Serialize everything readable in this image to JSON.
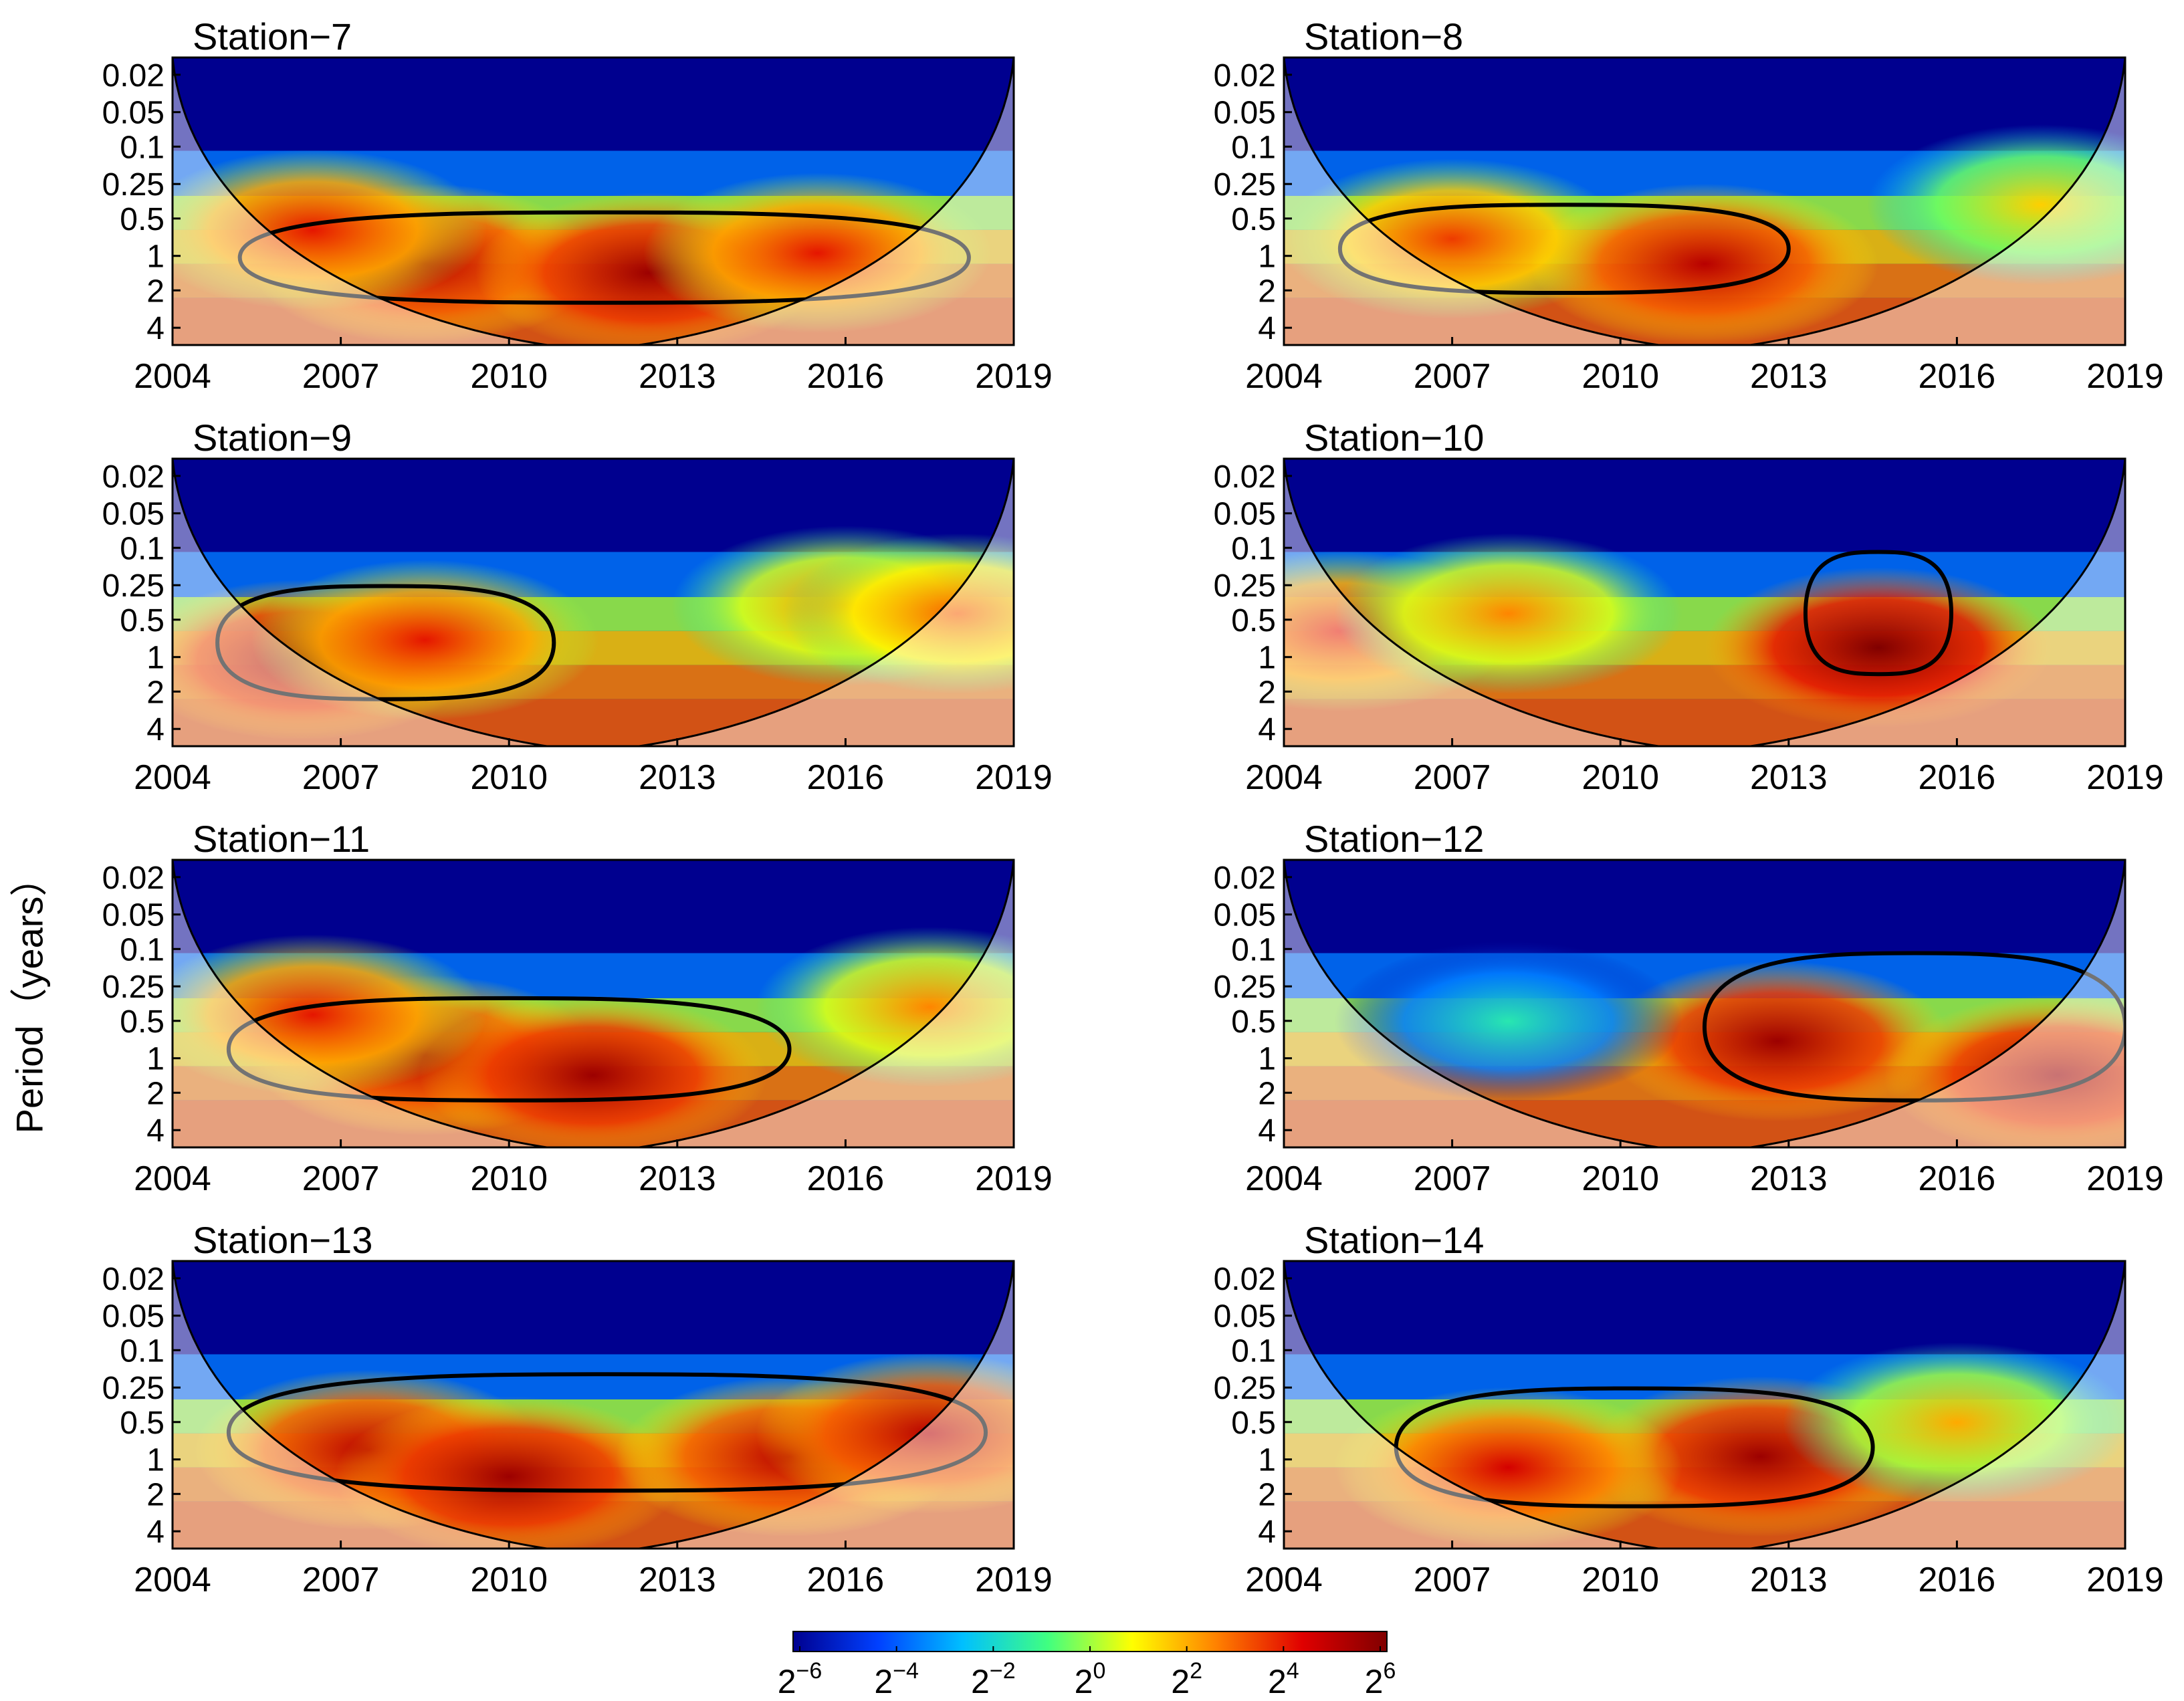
{
  "figure": {
    "ylabel": "Period（years）",
    "colorbar": {
      "ticks": [
        "2−6",
        "2−4",
        "2−2",
        "20",
        "22",
        "24",
        "26"
      ],
      "tick_base": "2",
      "tick_exponents": [
        "−6",
        "−4",
        "−2",
        "0",
        "2",
        "4",
        "6"
      ],
      "colors": [
        "#00008f",
        "#0040ff",
        "#00c0ff",
        "#40ff80",
        "#ffff00",
        "#ff8000",
        "#e00000",
        "#800000"
      ]
    }
  },
  "chart_data": [
    {
      "type": "heatmap",
      "title": "Station−7",
      "xticks": [
        "2004",
        "2007",
        "2010",
        "2013",
        "2016",
        "2019"
      ],
      "xlim": [
        2004,
        2019
      ],
      "yticks": [
        "0.02",
        "0.05",
        "0.1",
        "0.25",
        "0.5",
        "1",
        "2",
        "4"
      ],
      "blobs": [
        {
          "x": 2008.5,
          "p": 1.0,
          "level": 5.0
        },
        {
          "x": 2012.5,
          "p": 1.2,
          "level": 5.5
        },
        {
          "x": 2015.5,
          "p": 0.8,
          "level": 4.0
        },
        {
          "x": 2006.5,
          "p": 0.5,
          "level": 4.0
        }
      ],
      "significant": [
        [
          2005.2,
          2018.2,
          0.35,
          2.2
        ]
      ]
    },
    {
      "type": "heatmap",
      "title": "Station−8",
      "xticks": [
        "2004",
        "2007",
        "2010",
        "2013",
        "2016",
        "2019"
      ],
      "xlim": [
        2004,
        2019
      ],
      "yticks": [
        "0.02",
        "0.05",
        "0.1",
        "0.25",
        "0.5",
        "1",
        "2",
        "4"
      ],
      "blobs": [
        {
          "x": 2007.0,
          "p": 0.6,
          "level": 3.5
        },
        {
          "x": 2011.5,
          "p": 1.0,
          "level": 5.0
        },
        {
          "x": 2017.5,
          "p": 0.3,
          "level": 1.5
        }
      ],
      "significant": [
        [
          2005.0,
          2013.0,
          0.3,
          1.8
        ]
      ]
    },
    {
      "type": "heatmap",
      "title": "Station−9",
      "xticks": [
        "2004",
        "2007",
        "2010",
        "2013",
        "2016",
        "2019"
      ],
      "xlim": [
        2004,
        2019
      ],
      "yticks": [
        "0.02",
        "0.05",
        "0.1",
        "0.25",
        "0.5",
        "1",
        "2",
        "4"
      ],
      "blobs": [
        {
          "x": 2006.3,
          "p": 0.9,
          "level": 5.5
        },
        {
          "x": 2008.5,
          "p": 0.6,
          "level": 4.0
        },
        {
          "x": 2016.0,
          "p": 0.3,
          "level": 2.5
        },
        {
          "x": 2018.0,
          "p": 0.35,
          "level": 3.0
        }
      ],
      "significant": [
        [
          2004.8,
          2010.8,
          0.2,
          2.0
        ]
      ]
    },
    {
      "type": "heatmap",
      "title": "Station−10",
      "xticks": [
        "2004",
        "2007",
        "2010",
        "2013",
        "2016",
        "2019"
      ],
      "xlim": [
        2004,
        2019
      ],
      "yticks": [
        "0.02",
        "0.05",
        "0.1",
        "0.25",
        "0.5",
        "1",
        "2",
        "4"
      ],
      "blobs": [
        {
          "x": 2014.6,
          "p": 0.7,
          "level": 6.0
        },
        {
          "x": 2005.0,
          "p": 0.5,
          "level": 4.0
        },
        {
          "x": 2008.0,
          "p": 0.35,
          "level": 2.5
        }
      ],
      "significant": [
        [
          2013.3,
          2015.9,
          0.1,
          1.2
        ]
      ]
    },
    {
      "type": "heatmap",
      "title": "Station−11",
      "xticks": [
        "2004",
        "2007",
        "2010",
        "2013",
        "2016",
        "2019"
      ],
      "xlim": [
        2004,
        2019
      ],
      "yticks": [
        "0.02",
        "0.05",
        "0.1",
        "0.25",
        "0.5",
        "1",
        "2",
        "4"
      ],
      "blobs": [
        {
          "x": 2008.5,
          "p": 0.8,
          "level": 5.0
        },
        {
          "x": 2011.5,
          "p": 1.2,
          "level": 5.5
        },
        {
          "x": 2006.5,
          "p": 0.35,
          "level": 4.0
        },
        {
          "x": 2017.5,
          "p": 0.3,
          "level": 2.5
        }
      ],
      "significant": [
        [
          2005.0,
          2015.0,
          0.25,
          2.0
        ]
      ]
    },
    {
      "type": "heatmap",
      "title": "Station−12",
      "xticks": [
        "2004",
        "2007",
        "2010",
        "2013",
        "2016",
        "2019"
      ],
      "xlim": [
        2004,
        2019
      ],
      "yticks": [
        "0.02",
        "0.05",
        "0.1",
        "0.25",
        "0.5",
        "1",
        "2",
        "4"
      ],
      "blobs": [
        {
          "x": 2012.8,
          "p": 0.6,
          "level": 5.5
        },
        {
          "x": 2017.8,
          "p": 1.2,
          "level": 5.5
        },
        {
          "x": 2008.0,
          "p": 0.4,
          "level": -1.5
        }
      ],
      "significant": [
        [
          2011.5,
          2019.0,
          0.1,
          2.0
        ]
      ]
    },
    {
      "type": "heatmap",
      "title": "Station−13",
      "xticks": [
        "2004",
        "2007",
        "2010",
        "2013",
        "2016",
        "2019"
      ],
      "xlim": [
        2004,
        2019
      ],
      "yticks": [
        "0.02",
        "0.05",
        "0.1",
        "0.25",
        "0.5",
        "1",
        "2",
        "4"
      ],
      "blobs": [
        {
          "x": 2007.5,
          "p": 0.7,
          "level": 5.0
        },
        {
          "x": 2010.0,
          "p": 1.2,
          "level": 5.5
        },
        {
          "x": 2015.0,
          "p": 0.8,
          "level": 5.0
        },
        {
          "x": 2017.5,
          "p": 0.5,
          "level": 5.0
        }
      ],
      "significant": [
        [
          2005.0,
          2018.5,
          0.15,
          1.6
        ]
      ]
    },
    {
      "type": "heatmap",
      "title": "Station−14",
      "xticks": [
        "2004",
        "2007",
        "2010",
        "2013",
        "2016",
        "2019"
      ],
      "xlim": [
        2004,
        2019
      ],
      "yticks": [
        "0.02",
        "0.05",
        "0.1",
        "0.25",
        "0.5",
        "1",
        "2",
        "4"
      ],
      "blobs": [
        {
          "x": 2012.5,
          "p": 0.8,
          "level": 5.5
        },
        {
          "x": 2008.0,
          "p": 1.0,
          "level": 4.5
        },
        {
          "x": 2016.0,
          "p": 0.4,
          "level": 2.0
        }
      ],
      "significant": [
        [
          2006.0,
          2014.5,
          0.2,
          2.2
        ]
      ]
    }
  ]
}
